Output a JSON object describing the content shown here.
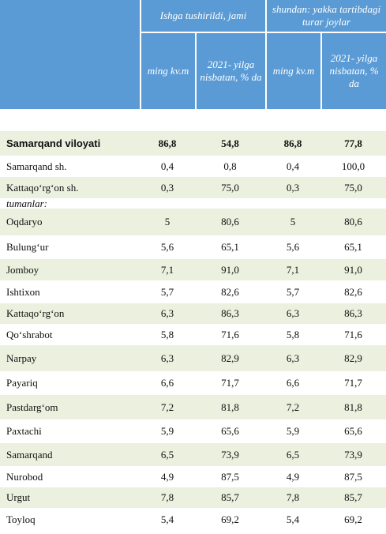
{
  "table": {
    "header": {
      "group1": "Ishga tushirildi, jami",
      "group2": "shundan: yakka tartibdagi turar joylar",
      "columns": [
        "ming kv.m",
        "2021- yilga nisbatan, % da",
        "ming kv.m",
        "2021- yilga nisbatan, % da"
      ]
    },
    "rows": [
      [
        "Samarqand viloyati",
        "86,8",
        "54,8",
        "86,8",
        "77,8"
      ],
      [
        "Samarqand sh.",
        "0,4",
        "0,8",
        "0,4",
        "100,0"
      ],
      [
        "Kattaqo‘rg‘on sh.",
        "0,3",
        "75,0",
        "0,3",
        "75,0"
      ],
      [
        "tumanlar:"
      ],
      [
        "Oqdaryo",
        "5",
        "80,6",
        "5",
        "80,6"
      ],
      [
        "Bulung‘ur",
        "5,6",
        "65,1",
        "5,6",
        "65,1"
      ],
      [
        "Jomboy",
        "7,1",
        "91,0",
        "7,1",
        "91,0"
      ],
      [
        "Ishtixon",
        "5,7",
        "82,6",
        "5,7",
        "82,6"
      ],
      [
        "Kattaqo‘rg‘on",
        "6,3",
        "86,3",
        "6,3",
        "86,3"
      ],
      [
        "Qo‘shrabot",
        "5,8",
        "71,6",
        "5,8",
        "71,6"
      ],
      [
        "Narpay",
        "6,3",
        "82,9",
        "6,3",
        "82,9"
      ],
      [
        "Payariq",
        "6,6",
        "71,7",
        "6,6",
        "71,7"
      ],
      [
        "Pastdarg‘om",
        "7,2",
        "81,8",
        "7,2",
        "81,8"
      ],
      [
        "Paxtachi",
        "5,9",
        "65,6",
        "5,9",
        "65,6"
      ],
      [
        "Samarqand",
        "6,5",
        "73,9",
        "6,5",
        "73,9"
      ],
      [
        "Nurobod",
        "4,9",
        "87,5",
        "4,9",
        "87,5"
      ],
      [
        "Urgut",
        "7,8",
        "85,7",
        "7,8",
        "85,7"
      ],
      [
        "Toyloq",
        "5,4",
        "69,2",
        "5,4",
        "69,2"
      ]
    ]
  }
}
